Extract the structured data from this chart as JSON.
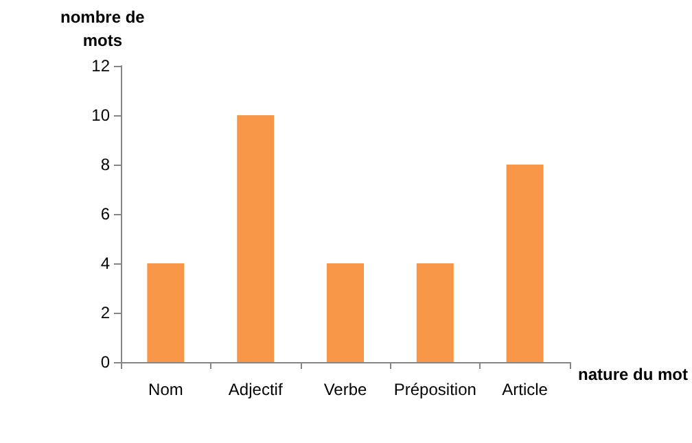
{
  "chart_data": {
    "type": "bar",
    "xlabel": "nature du mot",
    "ylabel": "nombre de\nmots",
    "categories": [
      "Nom",
      "Adjectif",
      "Verbe",
      "Préposition",
      "Article"
    ],
    "values": [
      4,
      10,
      4,
      4,
      8
    ],
    "color": "#f79646",
    "ylim": [
      0,
      12
    ],
    "yticks": [
      0,
      2,
      4,
      6,
      8,
      10,
      12
    ],
    "grid": false
  }
}
